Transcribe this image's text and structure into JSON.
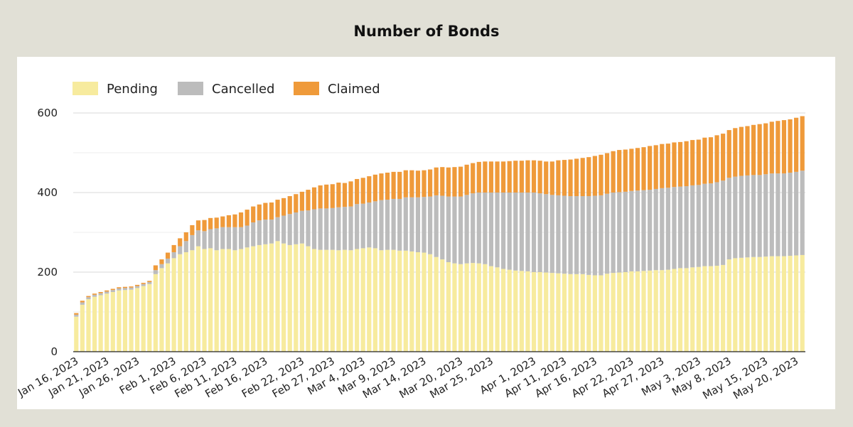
{
  "chart_data": {
    "type": "bar",
    "stacked": true,
    "title": "Number of Bonds",
    "xlabel": "",
    "ylabel": "",
    "ylim": [
      0,
      600
    ],
    "yticks": [
      0,
      200,
      400,
      600
    ],
    "ytick_labels": [
      "0",
      "200",
      "400",
      "600"
    ],
    "legend_position": "top-left",
    "grid": true,
    "x_tick_labels": [
      {
        "label": "Jan 16, 2023",
        "index": 0
      },
      {
        "label": "Jan 21, 2023",
        "index": 5
      },
      {
        "label": "Jan 26, 2023",
        "index": 10
      },
      {
        "label": "Feb 1, 2023",
        "index": 16
      },
      {
        "label": "Feb 6, 2023",
        "index": 21
      },
      {
        "label": "Feb 11, 2023",
        "index": 26
      },
      {
        "label": "Feb 16, 2023",
        "index": 31
      },
      {
        "label": "Feb 22, 2023",
        "index": 37
      },
      {
        "label": "Feb 27, 2023",
        "index": 42
      },
      {
        "label": "Mar 4, 2023",
        "index": 47
      },
      {
        "label": "Mar 9, 2023",
        "index": 52
      },
      {
        "label": "Mar 14, 2023",
        "index": 57
      },
      {
        "label": "Mar 20, 2023",
        "index": 63
      },
      {
        "label": "Mar 25, 2023",
        "index": 68
      },
      {
        "label": "Apr 1, 2023",
        "index": 75
      },
      {
        "label": "Apr 11, 2023",
        "index": 80
      },
      {
        "label": "Apr 16, 2023",
        "index": 85
      },
      {
        "label": "Apr 22, 2023",
        "index": 91
      },
      {
        "label": "Apr 27, 2023",
        "index": 96
      },
      {
        "label": "May 3, 2023",
        "index": 102
      },
      {
        "label": "May 8, 2023",
        "index": 107
      },
      {
        "label": "May 15, 2023",
        "index": 113
      },
      {
        "label": "May 20, 2023",
        "index": 118
      }
    ],
    "series": [
      {
        "name": "Pending",
        "color": "#f7eb9e",
        "values": [
          88,
          118,
          132,
          138,
          142,
          146,
          150,
          154,
          155,
          156,
          160,
          165,
          170,
          195,
          210,
          222,
          235,
          245,
          250,
          255,
          265,
          258,
          260,
          255,
          258,
          258,
          255,
          258,
          262,
          265,
          268,
          270,
          272,
          278,
          272,
          268,
          270,
          272,
          265,
          258,
          256,
          256,
          256,
          255,
          256,
          255,
          258,
          260,
          262,
          260,
          255,
          256,
          256,
          254,
          254,
          252,
          250,
          249,
          245,
          238,
          232,
          225,
          222,
          220,
          222,
          223,
          222,
          220,
          215,
          212,
          208,
          206,
          204,
          203,
          202,
          200,
          200,
          199,
          198,
          197,
          196,
          195,
          195,
          195,
          193,
          192,
          192,
          196,
          198,
          199,
          200,
          202,
          202,
          203,
          204,
          205,
          205,
          206,
          208,
          210,
          210,
          212,
          213,
          215,
          215,
          216,
          218,
          232,
          235,
          236,
          237,
          238,
          238,
          239,
          240,
          240,
          240,
          241,
          242,
          243
        ]
      },
      {
        "name": "Cancelled",
        "color": "#bcbcbc",
        "values": [
          5,
          6,
          5,
          5,
          5,
          5,
          5,
          5,
          5,
          5,
          5,
          5,
          5,
          10,
          10,
          12,
          15,
          20,
          28,
          38,
          40,
          45,
          48,
          55,
          55,
          55,
          58,
          55,
          55,
          60,
          62,
          62,
          60,
          60,
          70,
          78,
          80,
          82,
          90,
          100,
          104,
          104,
          105,
          108,
          108,
          110,
          113,
          112,
          113,
          118,
          126,
          126,
          128,
          130,
          134,
          136,
          138,
          140,
          145,
          155,
          160,
          165,
          168,
          170,
          172,
          175,
          178,
          180,
          185,
          188,
          192,
          194,
          196,
          197,
          198,
          200,
          198,
          197,
          196,
          196,
          196,
          196,
          196,
          196,
          198,
          200,
          201,
          201,
          202,
          202,
          202,
          202,
          203,
          203,
          203,
          204,
          206,
          206,
          206,
          205,
          206,
          206,
          206,
          207,
          208,
          210,
          212,
          205,
          205,
          206,
          206,
          206,
          206,
          207,
          208,
          208,
          208,
          209,
          210,
          212
        ]
      },
      {
        "name": "Claimed",
        "color": "#ef9a3a",
        "values": [
          4,
          4,
          3,
          3,
          3,
          3,
          3,
          3,
          3,
          3,
          3,
          3,
          3,
          12,
          12,
          15,
          18,
          20,
          22,
          25,
          25,
          28,
          28,
          27,
          27,
          30,
          32,
          37,
          40,
          40,
          40,
          42,
          43,
          44,
          44,
          45,
          46,
          48,
          52,
          55,
          58,
          60,
          60,
          62,
          60,
          63,
          63,
          65,
          66,
          67,
          67,
          68,
          68,
          68,
          68,
          68,
          67,
          67,
          68,
          70,
          72,
          73,
          74,
          75,
          76,
          76,
          77,
          78,
          78,
          78,
          78,
          79,
          80,
          80,
          81,
          81,
          82,
          82,
          84,
          88,
          90,
          92,
          94,
          96,
          98,
          100,
          102,
          102,
          104,
          106,
          106,
          106,
          107,
          108,
          110,
          110,
          111,
          111,
          112,
          112,
          113,
          114,
          114,
          116,
          116,
          118,
          118,
          120,
          122,
          123,
          124,
          126,
          128,
          128,
          130,
          132,
          134,
          134,
          136,
          137
        ]
      }
    ]
  }
}
